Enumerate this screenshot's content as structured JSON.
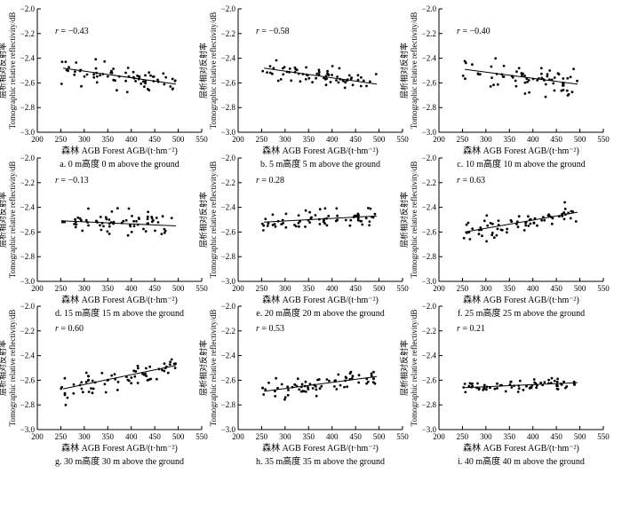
{
  "figure": {
    "xlabel": "森林 AGB Forest AGB/(t·hm⁻²)",
    "ylabel_cn": "层析相对反射率",
    "ylabel_en": "Tomographic relative reflectivity/dB",
    "r_prefix": "r = "
  },
  "chart_data": [
    {
      "type": "scatter",
      "caption": "a. 0 m高度 0 m above the ground",
      "r": "−0.43",
      "xlim": [
        200,
        550
      ],
      "ylim": [
        -3.0,
        -2.0
      ],
      "xticks": [
        200,
        250,
        300,
        350,
        400,
        450,
        500,
        550
      ],
      "yticks": [
        -2.0,
        -2.2,
        -2.4,
        -2.6,
        -2.8,
        -3.0
      ],
      "fit": [
        [
          255,
          -2.48
        ],
        [
          495,
          -2.61
        ]
      ],
      "seed": 11,
      "n": 70,
      "x_center": 360,
      "x_spread": 120,
      "noise": 0.07,
      "x_range": [
        250,
        495
      ]
    },
    {
      "type": "scatter",
      "caption": "b. 5 m高度 5 m above the ground",
      "r": "−0.58",
      "xlim": [
        200,
        550
      ],
      "ylim": [
        -3.0,
        -2.0
      ],
      "xticks": [
        200,
        250,
        300,
        350,
        400,
        450,
        500,
        550
      ],
      "yticks": [
        -2.0,
        -2.2,
        -2.4,
        -2.6,
        -2.8,
        -3.0
      ],
      "fit": [
        [
          255,
          -2.48
        ],
        [
          495,
          -2.61
        ]
      ],
      "seed": 23,
      "n": 70,
      "x_center": 360,
      "x_spread": 120,
      "noise": 0.05,
      "x_range": [
        250,
        495
      ]
    },
    {
      "type": "scatter",
      "caption": "c. 10 m高度 10 m above the ground",
      "r": "−0.40",
      "xlim": [
        200,
        550
      ],
      "ylim": [
        -3.0,
        -2.0
      ],
      "xticks": [
        200,
        250,
        300,
        350,
        400,
        450,
        500,
        550
      ],
      "yticks": [
        -2.0,
        -2.2,
        -2.4,
        -2.6,
        -2.8,
        -3.0
      ],
      "fit": [
        [
          255,
          -2.49
        ],
        [
          495,
          -2.61
        ]
      ],
      "seed": 37,
      "n": 70,
      "x_center": 360,
      "x_spread": 120,
      "noise": 0.07,
      "x_range": [
        250,
        495
      ]
    },
    {
      "type": "scatter",
      "caption": "d. 15 m高度 15 m above the ground",
      "r": "−0.13",
      "xlim": [
        200,
        550
      ],
      "ylim": [
        -3.0,
        -2.0
      ],
      "xticks": [
        200,
        250,
        300,
        350,
        400,
        450,
        500,
        550
      ],
      "yticks": [
        -2.0,
        -2.2,
        -2.4,
        -2.6,
        -2.8,
        -3.0
      ],
      "fit": [
        [
          255,
          -2.51
        ],
        [
          495,
          -2.55
        ]
      ],
      "seed": 41,
      "n": 70,
      "x_center": 360,
      "x_spread": 120,
      "noise": 0.07,
      "x_range": [
        250,
        495
      ]
    },
    {
      "type": "scatter",
      "caption": "e. 20 m高度 20 m above the ground",
      "r": "0.28",
      "xlim": [
        200,
        550
      ],
      "ylim": [
        -3.0,
        -2.0
      ],
      "xticks": [
        200,
        250,
        300,
        350,
        400,
        450,
        500,
        550
      ],
      "yticks": [
        -2.0,
        -2.2,
        -2.4,
        -2.6,
        -2.8,
        -3.0
      ],
      "fit": [
        [
          255,
          -2.52
        ],
        [
          495,
          -2.47
        ]
      ],
      "seed": 53,
      "n": 70,
      "x_center": 360,
      "x_spread": 120,
      "noise": 0.05,
      "x_range": [
        250,
        495
      ]
    },
    {
      "type": "scatter",
      "caption": "f. 25 m高度 25 m above the ground",
      "r": "0.63",
      "xlim": [
        200,
        550
      ],
      "ylim": [
        -3.0,
        -2.0
      ],
      "xticks": [
        200,
        250,
        300,
        350,
        400,
        450,
        500,
        550
      ],
      "yticks": [
        -2.0,
        -2.2,
        -2.4,
        -2.6,
        -2.8,
        -3.0
      ],
      "fit": [
        [
          255,
          -2.6
        ],
        [
          495,
          -2.44
        ]
      ],
      "seed": 67,
      "n": 70,
      "x_center": 360,
      "x_spread": 120,
      "noise": 0.05,
      "x_range": [
        250,
        495
      ]
    },
    {
      "type": "scatter",
      "caption": "g. 30 m高度 30 m above the ground",
      "r": "0.60",
      "xlim": [
        200,
        550
      ],
      "ylim": [
        -3.0,
        -2.0
      ],
      "xticks": [
        200,
        250,
        300,
        350,
        400,
        450,
        500,
        550
      ],
      "yticks": [
        -2.0,
        -2.2,
        -2.4,
        -2.6,
        -2.8,
        -3.0
      ],
      "fit": [
        [
          255,
          -2.67
        ],
        [
          495,
          -2.48
        ]
      ],
      "seed": 71,
      "n": 70,
      "x_center": 360,
      "x_spread": 120,
      "noise": 0.06,
      "x_range": [
        250,
        495
      ]
    },
    {
      "type": "scatter",
      "caption": "h. 35 m高度 35 m above the ground",
      "r": "0.53",
      "xlim": [
        200,
        550
      ],
      "ylim": [
        -3.0,
        -2.0
      ],
      "xticks": [
        200,
        250,
        300,
        350,
        400,
        450,
        500,
        550
      ],
      "yticks": [
        -2.0,
        -2.2,
        -2.4,
        -2.6,
        -2.8,
        -3.0
      ],
      "fit": [
        [
          255,
          -2.69
        ],
        [
          495,
          -2.57
        ]
      ],
      "seed": 83,
      "n": 70,
      "x_center": 360,
      "x_spread": 120,
      "noise": 0.05,
      "x_range": [
        250,
        495
      ]
    },
    {
      "type": "scatter",
      "caption": "i. 40 m高度 40 m above the ground",
      "r": "0.21",
      "xlim": [
        200,
        550
      ],
      "ylim": [
        -3.0,
        -2.0
      ],
      "xticks": [
        200,
        250,
        300,
        350,
        400,
        450,
        500,
        550
      ],
      "yticks": [
        -2.0,
        -2.2,
        -2.4,
        -2.6,
        -2.8,
        -3.0
      ],
      "fit": [
        [
          255,
          -2.66
        ],
        [
          495,
          -2.62
        ]
      ],
      "seed": 97,
      "n": 70,
      "x_center": 360,
      "x_spread": 120,
      "noise": 0.03,
      "x_range": [
        250,
        495
      ]
    }
  ]
}
